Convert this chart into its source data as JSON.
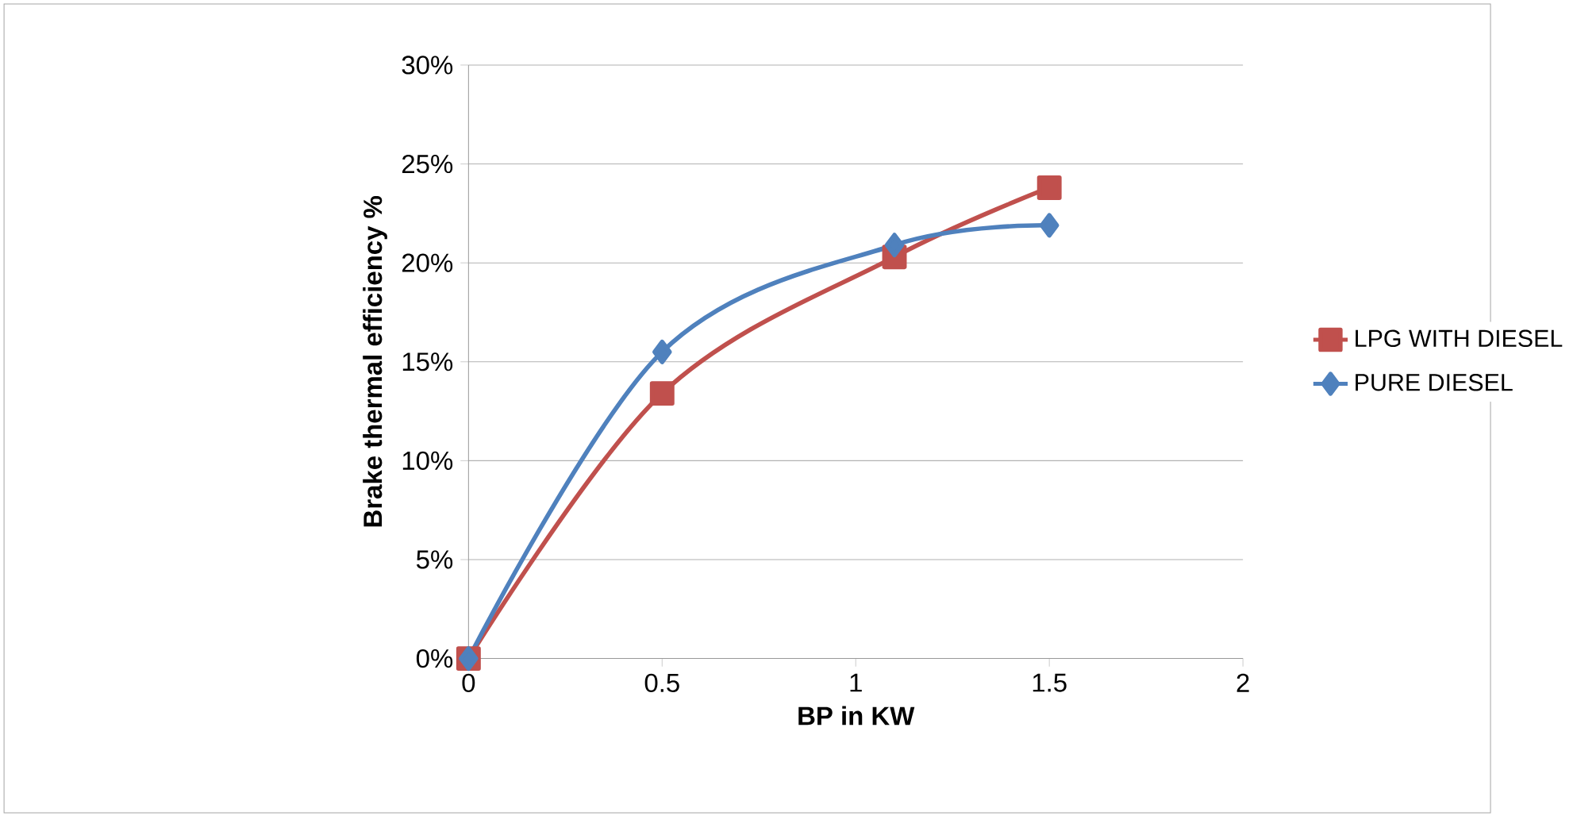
{
  "chart_data": {
    "type": "line",
    "xlabel": "BP in KW",
    "ylabel": "Brake thermal efficiency %",
    "series": [
      {
        "name": "LPG WITH DIESEL",
        "color": "#c0504d",
        "marker": "square",
        "x": [
          0,
          0.5,
          1.1,
          1.5
        ],
        "values": [
          0,
          13.4,
          20.3,
          23.8
        ]
      },
      {
        "name": "PURE DIESEL",
        "color": "#4f81bd",
        "marker": "diamond",
        "x": [
          0,
          0.5,
          1.1,
          1.5
        ],
        "values": [
          0,
          15.5,
          20.9,
          21.9
        ]
      }
    ],
    "xlim": [
      0,
      2
    ],
    "xticks": [
      0,
      0.5,
      1,
      1.5,
      2
    ],
    "ylim": [
      0,
      30
    ],
    "yticks": [
      {
        "value": 0,
        "label": "0%"
      },
      {
        "value": 5,
        "label": "5%"
      },
      {
        "value": 10,
        "label": "10%"
      },
      {
        "value": 15,
        "label": "15%"
      },
      {
        "value": 20,
        "label": "20%"
      },
      {
        "value": 25,
        "label": "25%"
      },
      {
        "value": 30,
        "label": "30%"
      }
    ],
    "grid": "y",
    "legend": "right",
    "line_style": "solid"
  }
}
